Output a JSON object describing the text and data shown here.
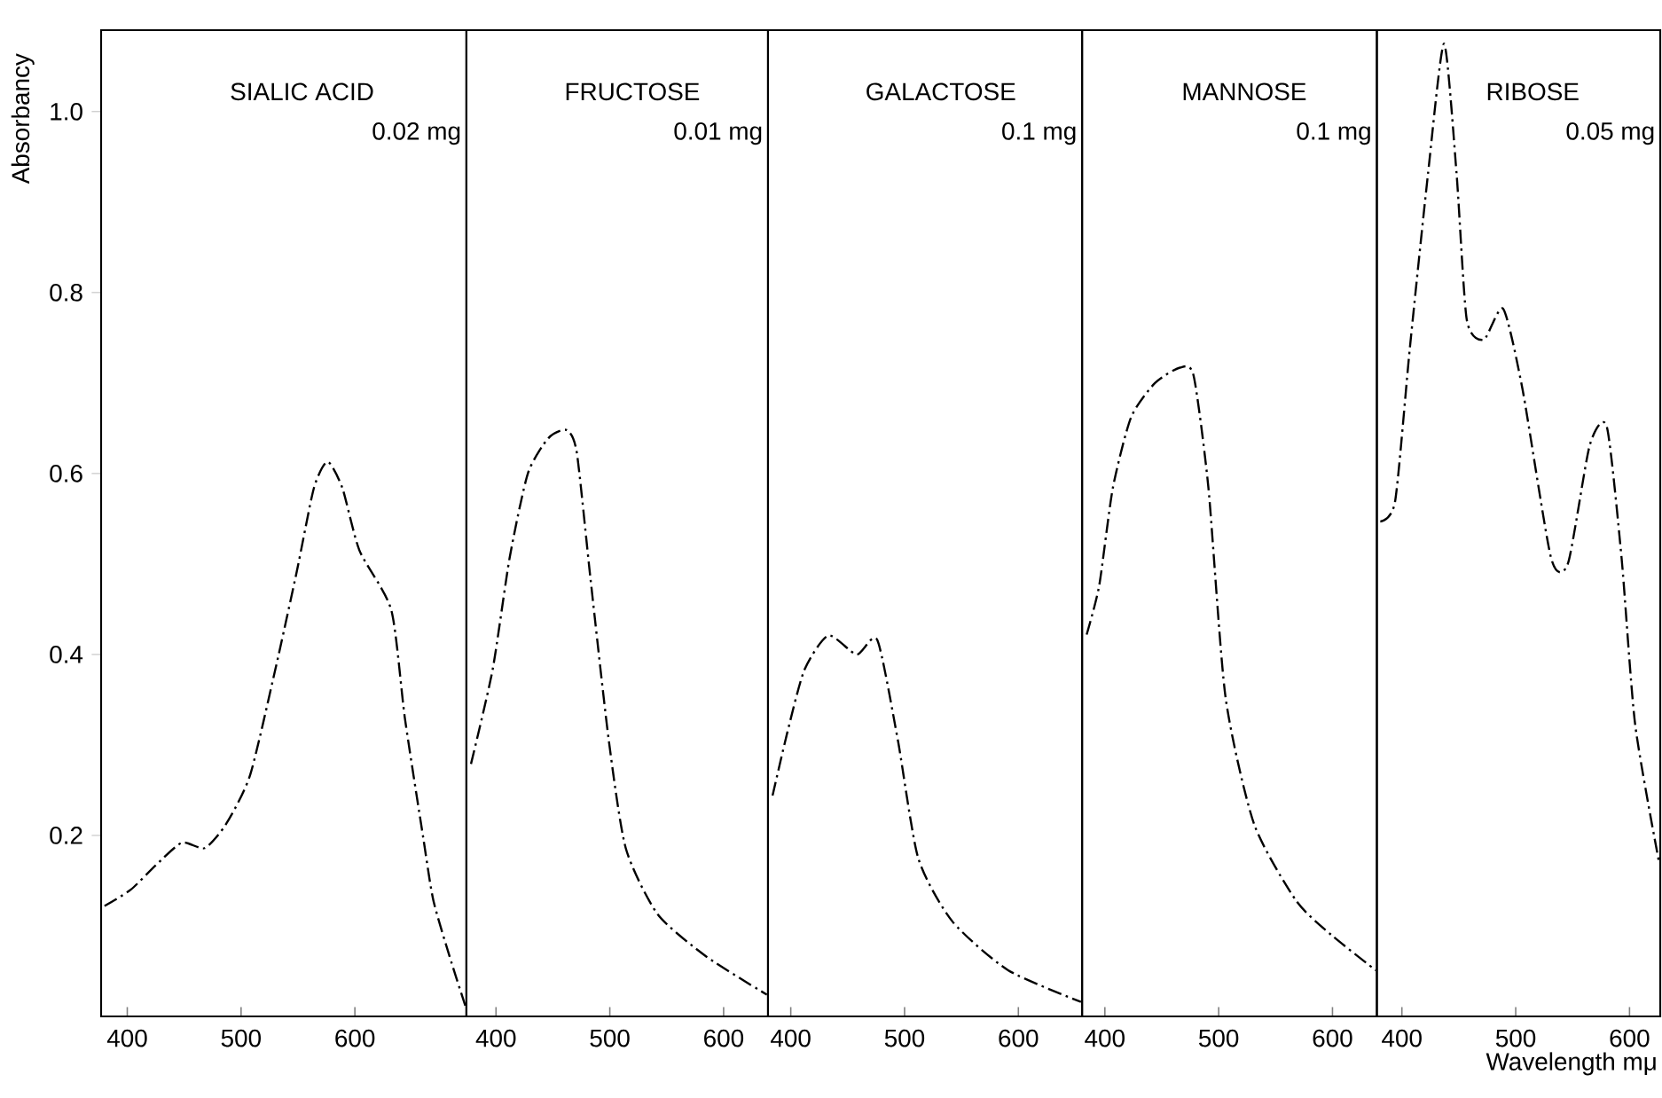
{
  "chart_data": [
    {
      "type": "line",
      "title": "SIALIC ACID",
      "subtitle": "0.02 mg",
      "ylabel": "Absorbancy",
      "xlim": [
        377,
        698
      ],
      "ylim": [
        0,
        1.09
      ],
      "xticks": [
        400,
        500,
        600
      ],
      "yticks": [
        0.2,
        0.4,
        0.6,
        0.8,
        {
          "value": 1.0,
          "label": "1.0"
        }
      ],
      "line_style": "dashed",
      "series": [
        {
          "color": "#000000",
          "x": [
            380,
            403,
            425,
            448,
            468,
            487,
            508,
            530,
            549,
            564,
            576,
            589,
            604,
            632,
            644,
            660,
            669,
            685,
            697
          ],
          "values": [
            0.122,
            0.14,
            0.167,
            0.192,
            0.186,
            0.213,
            0.267,
            0.383,
            0.492,
            0.584,
            0.613,
            0.584,
            0.515,
            0.449,
            0.329,
            0.198,
            0.128,
            0.059,
            0.012
          ]
        }
      ]
    },
    {
      "type": "line",
      "title": "FRUCTOSE",
      "subtitle": "0.01 mg",
      "xlim": [
        374,
        639
      ],
      "ylim": [
        0,
        1.09
      ],
      "xticks": [
        400,
        500,
        600
      ],
      "tick_labels": "x",
      "line_style": "dashed",
      "series": [
        {
          "color": "#000000",
          "x": [
            378,
            397,
            412,
            428,
            446,
            462,
            471,
            483,
            499,
            514,
            542,
            585,
            638
          ],
          "values": [
            0.279,
            0.383,
            0.507,
            0.6,
            0.639,
            0.648,
            0.623,
            0.484,
            0.306,
            0.186,
            0.113,
            0.066,
            0.024
          ]
        }
      ]
    },
    {
      "type": "line",
      "title": "GALACTOSE",
      "subtitle": "0.1 mg",
      "xlim": [
        380,
        656
      ],
      "ylim": [
        0,
        1.09
      ],
      "xticks": [
        400,
        500,
        600
      ],
      "tick_labels": "x",
      "line_style": "dashed",
      "series": [
        {
          "color": "#000000",
          "x": [
            384,
            397,
            412,
            433,
            458,
            476,
            494,
            512,
            542,
            591,
            655
          ],
          "values": [
            0.244,
            0.314,
            0.383,
            0.421,
            0.4,
            0.416,
            0.306,
            0.175,
            0.105,
            0.051,
            0.016
          ]
        }
      ]
    },
    {
      "type": "line",
      "title": "MANNOSE",
      "subtitle": "0.1 mg",
      "xlim": [
        380,
        639
      ],
      "ylim": [
        0,
        1.09
      ],
      "xticks": [
        400,
        500,
        600
      ],
      "tick_labels": "x",
      "line_style": "dashed",
      "series": [
        {
          "color": "#000000",
          "x": [
            384,
            395,
            407,
            423,
            444,
            466,
            478,
            491,
            506,
            531,
            568,
            599,
            638
          ],
          "values": [
            0.422,
            0.476,
            0.584,
            0.662,
            0.7,
            0.717,
            0.708,
            0.584,
            0.353,
            0.213,
            0.128,
            0.09,
            0.051
          ]
        }
      ]
    },
    {
      "type": "line",
      "title": "RIBOSE",
      "subtitle": "0.05 mg",
      "xlabel": "Wavelength mμ",
      "xlim": [
        378,
        627
      ],
      "ylim": [
        0,
        1.09
      ],
      "xticks": [
        400,
        500,
        600
      ],
      "tick_labels": "x",
      "line_style": "dashed",
      "series": [
        {
          "color": "#000000",
          "x": [
            381,
            394,
            407,
            423,
            437,
            448,
            457,
            472,
            489,
            506,
            531,
            546,
            565,
            580,
            593,
            605,
            626
          ],
          "values": [
            0.547,
            0.569,
            0.739,
            0.932,
            1.075,
            0.932,
            0.77,
            0.748,
            0.782,
            0.693,
            0.507,
            0.501,
            0.631,
            0.652,
            0.507,
            0.322,
            0.17
          ]
        }
      ]
    }
  ]
}
